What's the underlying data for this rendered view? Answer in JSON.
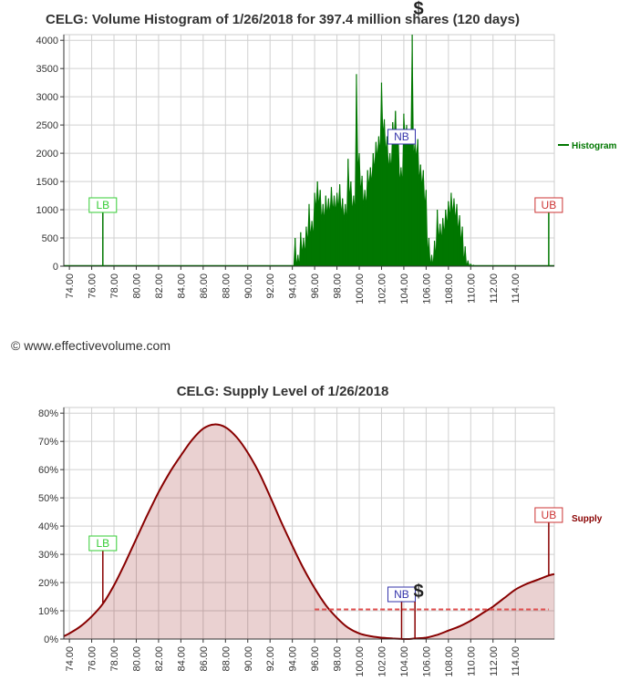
{
  "copyright": "© www.effectivevolume.com",
  "chart_data": [
    {
      "type": "area",
      "title": "CELG: Volume Histogram of 1/26/2018 for 397.4 million shares (120 days)",
      "xlim": [
        73.5,
        117.5
      ],
      "ylim": [
        0,
        4100
      ],
      "yticks": [
        0,
        500,
        1000,
        1500,
        2000,
        2500,
        3000,
        3500,
        4000
      ],
      "yticklabels": [
        "0",
        "500",
        "1000",
        "1500",
        "2000",
        "2500",
        "3000",
        "3500",
        "4000"
      ],
      "xticks": [
        74,
        76,
        78,
        80,
        82,
        84,
        86,
        88,
        90,
        92,
        94,
        96,
        98,
        100,
        102,
        104,
        106,
        108,
        110,
        112,
        114
      ],
      "xticklabels": [
        "74.00",
        "76.00",
        "78.00",
        "80.00",
        "82.00",
        "84.00",
        "86.00",
        "88.00",
        "90.00",
        "92.00",
        "94.00",
        "96.00",
        "98.00",
        "100.00",
        "102.00",
        "104.00",
        "106.00",
        "108.00",
        "110.00",
        "112.00",
        "114.00"
      ],
      "grid": true,
      "legend_position": "right",
      "series": [
        {
          "name": "Histogram",
          "color": "#007700",
          "x": [
            94.0,
            94.25,
            94.5,
            94.75,
            95.0,
            95.25,
            95.5,
            95.75,
            96.0,
            96.25,
            96.5,
            96.75,
            97.0,
            97.25,
            97.5,
            97.75,
            98.0,
            98.25,
            98.5,
            98.75,
            99.0,
            99.25,
            99.5,
            99.75,
            100.0,
            100.25,
            100.5,
            100.75,
            101.0,
            101.25,
            101.5,
            101.75,
            102.0,
            102.25,
            102.5,
            102.75,
            103.0,
            103.25,
            103.5,
            103.75,
            104.0,
            104.25,
            104.5,
            104.75,
            105.0,
            105.25,
            105.5,
            105.75,
            106.0,
            106.25,
            106.5,
            106.75,
            107.0,
            107.25,
            107.5,
            107.75,
            108.0,
            108.25,
            108.5,
            108.75,
            109.0,
            109.25,
            109.5,
            109.75,
            110.0,
            110.25,
            110.5,
            110.75
          ],
          "values": [
            0,
            500,
            200,
            600,
            500,
            700,
            1100,
            800,
            1300,
            1500,
            1350,
            1100,
            1250,
            1200,
            1400,
            1250,
            1300,
            1450,
            1200,
            1100,
            1900,
            1500,
            1250,
            3400,
            2000,
            1600,
            1350,
            1700,
            1750,
            2000,
            2200,
            2300,
            3250,
            2600,
            2300,
            2000,
            2550,
            2750,
            2350,
            1750,
            2700,
            2500,
            2350,
            4100,
            2200,
            2250,
            1800,
            1700,
            1350,
            500,
            200,
            450,
            1000,
            750,
            850,
            1000,
            1150,
            1300,
            1200,
            1100,
            900,
            700,
            350,
            100,
            40,
            20,
            10,
            0
          ]
        }
      ],
      "markers": [
        {
          "label": "LB",
          "x": 77.0,
          "color": "#33cc33"
        },
        {
          "label": "NB",
          "x": 103.8,
          "color": "#3333aa"
        },
        {
          "label": "UB",
          "x": 117.0,
          "color": "#cc3333"
        }
      ]
    },
    {
      "type": "area",
      "title": "CELG: Supply Level of 1/26/2018",
      "xlim": [
        73.5,
        117.5
      ],
      "ylim": [
        0,
        82
      ],
      "yticks": [
        0,
        10,
        20,
        30,
        40,
        50,
        60,
        70,
        80
      ],
      "yticklabels": [
        "0%",
        "10%",
        "20%",
        "30%",
        "40%",
        "50%",
        "60%",
        "70%",
        "80%"
      ],
      "xticks": [
        74,
        76,
        78,
        80,
        82,
        84,
        86,
        88,
        90,
        92,
        94,
        96,
        98,
        100,
        102,
        104,
        106,
        108,
        110,
        112,
        114
      ],
      "xticklabels": [
        "74.00",
        "76.00",
        "78.00",
        "80.00",
        "82.00",
        "84.00",
        "86.00",
        "88.00",
        "90.00",
        "92.00",
        "94.00",
        "96.00",
        "98.00",
        "100.00",
        "102.00",
        "104.00",
        "106.00",
        "108.00",
        "110.00",
        "112.00",
        "114.00"
      ],
      "grid": true,
      "legend_position": "right",
      "series": [
        {
          "name": "Supply",
          "color": "#880000",
          "x": [
            73.5,
            74,
            75,
            76,
            77,
            78,
            79,
            80,
            81,
            82,
            83,
            84,
            85,
            86,
            87,
            88,
            89,
            90,
            91,
            92,
            93,
            94,
            95,
            96,
            97,
            98,
            99,
            100,
            101,
            102,
            103,
            104,
            104.5,
            105,
            106,
            107,
            108,
            109,
            110,
            111,
            112,
            113,
            114,
            115,
            116,
            117,
            117.5
          ],
          "values": [
            1,
            2,
            4.5,
            8,
            12.5,
            19,
            27,
            35.5,
            44,
            52,
            59,
            65,
            70.5,
            74.5,
            76,
            75,
            71.5,
            66,
            59,
            50.5,
            41.5,
            33,
            25,
            18,
            12,
            7.5,
            4,
            2,
            1,
            0.5,
            0.2,
            0,
            0,
            0.2,
            0.5,
            1.5,
            3,
            4.5,
            6.5,
            9,
            11.5,
            14.5,
            17.5,
            19.5,
            21,
            22.5,
            23
          ]
        }
      ],
      "reference_line": {
        "value": 10.5,
        "from": 96.0,
        "to": 117.0,
        "color": "#e05050"
      },
      "markers": [
        {
          "label": "LB",
          "x": 77.0,
          "color": "#33cc33"
        },
        {
          "label": "NB",
          "x": 103.8,
          "color": "#3333aa"
        },
        {
          "label": "UB",
          "x": 117.0,
          "color": "#cc3333"
        }
      ]
    }
  ]
}
